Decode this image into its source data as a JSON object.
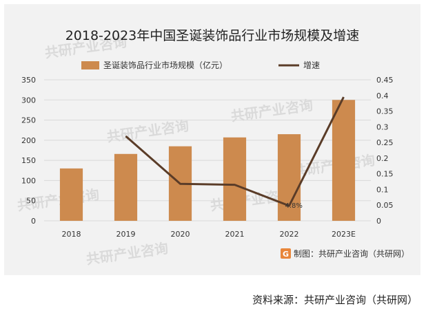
{
  "chart_data": {
    "type": "bar+line",
    "title": "2018-2023年中国圣诞装饰品行业市场规模及增速",
    "categories": [
      "2018",
      "2019",
      "2020",
      "2021",
      "2022",
      "2023E"
    ],
    "series": [
      {
        "name": "圣诞装饰品行业市场规模（亿元）",
        "type": "bar",
        "axis": "left",
        "values": [
          130,
          166,
          185,
          207,
          215,
          300
        ]
      },
      {
        "name": "增速",
        "type": "line",
        "axis": "right",
        "values": [
          null,
          0.27,
          0.118,
          0.115,
          0.048,
          0.395
        ]
      }
    ],
    "left_axis": {
      "min": 0,
      "max": 350,
      "step": 50,
      "ticks": [
        "0",
        "50",
        "100",
        "150",
        "200",
        "250",
        "300",
        "350"
      ]
    },
    "right_axis": {
      "min": 0,
      "max": 0.45,
      "step": 0.05,
      "ticks": [
        "0",
        "0.05",
        "0.1",
        "0.15",
        "0.2",
        "0.25",
        "0.3",
        "0.35",
        "0.4",
        "0.45"
      ]
    },
    "annotations": [
      {
        "category": "2022",
        "text": "4.8%"
      }
    ],
    "legend_position": "top",
    "colors": {
      "bar": "#cd8a4e",
      "line": "#5a3c28",
      "grid": "#d9d9d9",
      "text": "#333333"
    }
  },
  "watermark_text": "共研产业咨询",
  "made_by": "制图：共研产业咨询（共研网）",
  "source_credit": "资料来源：共研产业咨询（共研网）"
}
